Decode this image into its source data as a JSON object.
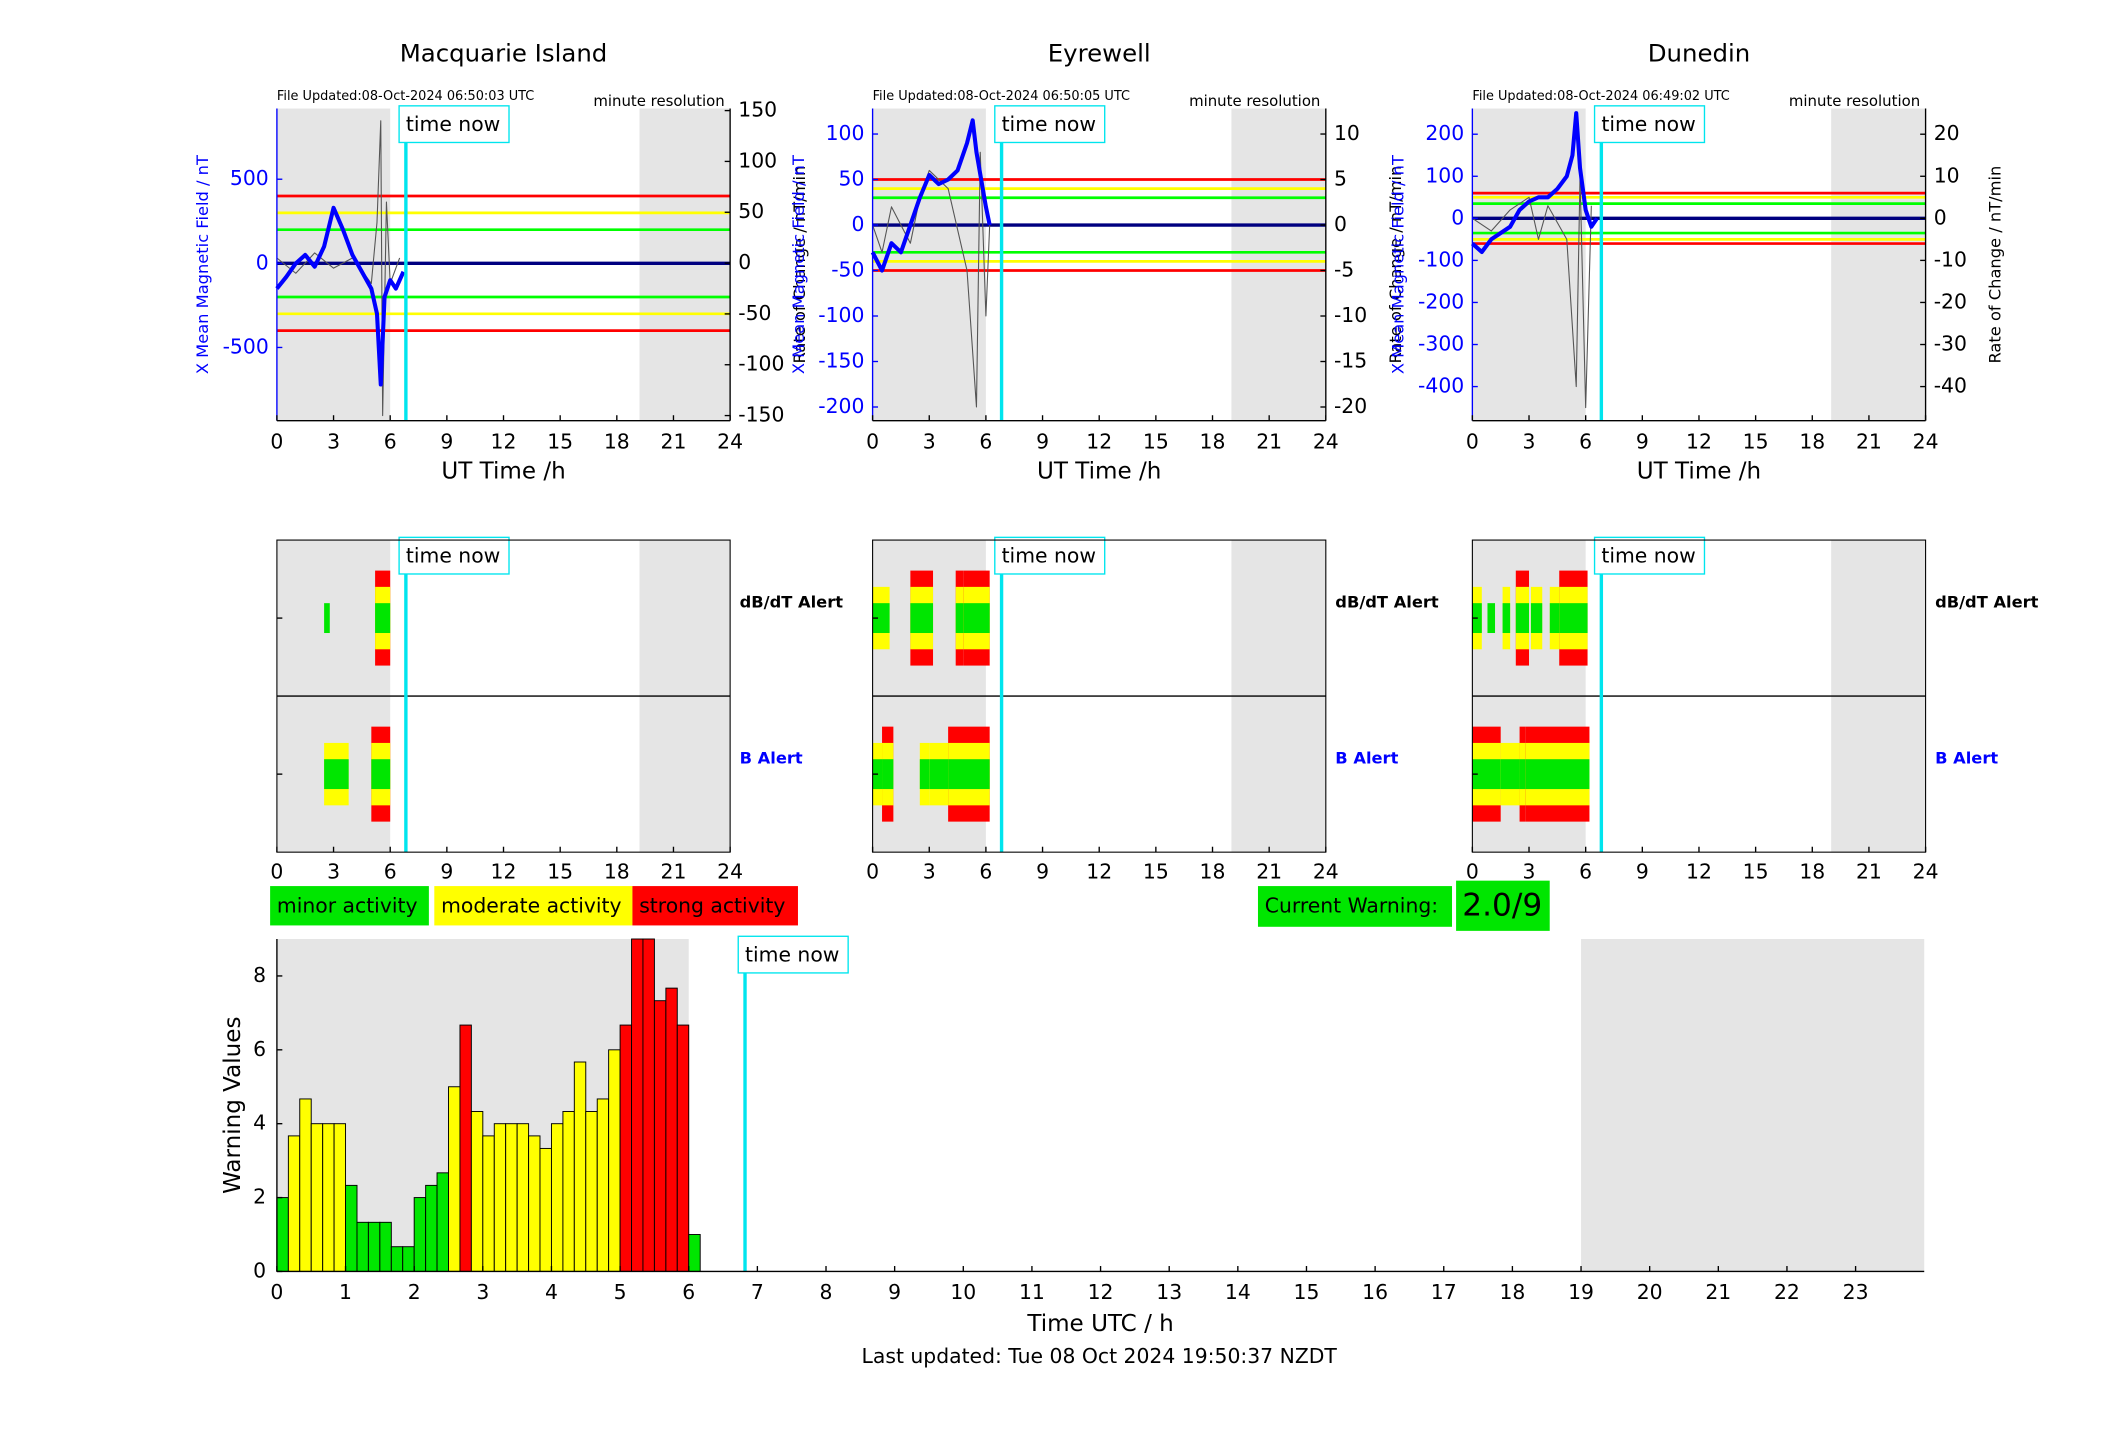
{
  "chart_data": [
    {
      "type": "line",
      "title": "Macquarie Island",
      "file_updated": "File Updated:08-Oct-2024 06:50:03 UTC",
      "resolution": "minute resolution",
      "annotation": "time now",
      "now": 6.83,
      "xlabel": "UT Time /h",
      "ylabel": "X Mean Magnetic Field / nT",
      "y2label": "Rate of Change / nT/min",
      "xlim": [
        0,
        24
      ],
      "xticks": [
        0,
        3,
        6,
        9,
        12,
        15,
        18,
        21,
        24
      ],
      "ylim": [
        -935,
        920
      ],
      "yticks": [
        -500,
        0,
        500
      ],
      "y2lim": [
        -155,
        152
      ],
      "y2ticks": [
        -150,
        -100,
        -50,
        0,
        50,
        100,
        150
      ],
      "shaded": [
        [
          0,
          6
        ],
        [
          19.2,
          24
        ]
      ],
      "levels": [
        {
          "value": 400,
          "color": "#ff0000"
        },
        {
          "value": 300,
          "color": "#ffff00"
        },
        {
          "value": 200,
          "color": "#00ff00"
        },
        {
          "value": -200,
          "color": "#00ff00"
        },
        {
          "value": -300,
          "color": "#ffff00"
        },
        {
          "value": -400,
          "color": "#ff0000"
        }
      ],
      "series": [
        {
          "color": "#555555",
          "axis": "y2",
          "x": [
            0,
            1,
            2,
            3,
            4,
            5,
            5.3,
            5.5,
            5.6,
            5.8,
            6,
            6.5
          ],
          "values": [
            5,
            -10,
            10,
            -5,
            5,
            -20,
            40,
            140,
            -150,
            60,
            -20,
            5
          ]
        },
        {
          "color": "#0000ff",
          "x": [
            0,
            0.5,
            1,
            1.5,
            2,
            2.5,
            3,
            3.5,
            4,
            4.5,
            5,
            5.3,
            5.5,
            5.7,
            6,
            6.3,
            6.7
          ],
          "values": [
            -150,
            -80,
            0,
            50,
            -20,
            100,
            330,
            200,
            50,
            -50,
            -150,
            -300,
            -720,
            -200,
            -100,
            -150,
            -50
          ]
        }
      ]
    },
    {
      "type": "line",
      "title": "Eyrewell",
      "file_updated": "File Updated:08-Oct-2024 06:50:05 UTC",
      "resolution": "minute resolution",
      "annotation": "time now",
      "now": 6.83,
      "xlabel": "UT Time /h",
      "ylabel": "X Mean Magnetic Field / nT",
      "y2label": "Rate of Change / nT/min",
      "xlim": [
        0,
        24
      ],
      "xticks": [
        0,
        3,
        6,
        9,
        12,
        15,
        18,
        21,
        24
      ],
      "ylim": [
        -215,
        128
      ],
      "yticks": [
        -200,
        -150,
        -100,
        -50,
        0,
        50,
        100
      ],
      "y2lim": [
        -21.5,
        12.8
      ],
      "y2ticks": [
        -20,
        -15,
        -10,
        -5,
        0,
        5,
        10
      ],
      "shaded": [
        [
          0,
          6
        ],
        [
          19,
          24
        ]
      ],
      "levels": [
        {
          "value": 50,
          "color": "#ff0000"
        },
        {
          "value": 40,
          "color": "#ffff00"
        },
        {
          "value": 30,
          "color": "#00ff00"
        },
        {
          "value": -30,
          "color": "#00ff00"
        },
        {
          "value": -40,
          "color": "#ffff00"
        },
        {
          "value": -50,
          "color": "#ff0000"
        }
      ],
      "series": [
        {
          "color": "#555555",
          "axis": "y2",
          "x": [
            0,
            0.5,
            1,
            2,
            2.5,
            3,
            4,
            5,
            5.5,
            5.7,
            6,
            6.2
          ],
          "values": [
            0,
            -3,
            2,
            -2,
            3,
            6,
            4,
            -5,
            -20,
            8,
            -10,
            0
          ]
        },
        {
          "color": "#0000ff",
          "x": [
            0,
            0.5,
            1,
            1.5,
            2,
            2.5,
            3,
            3.5,
            4,
            4.5,
            5,
            5.3,
            5.5,
            6,
            6.2
          ],
          "values": [
            -30,
            -50,
            -20,
            -30,
            0,
            30,
            55,
            45,
            50,
            60,
            90,
            115,
            80,
            20,
            0
          ]
        }
      ]
    },
    {
      "type": "line",
      "title": "Dunedin",
      "file_updated": "File Updated:08-Oct-2024 06:49:02 UTC",
      "resolution": "minute resolution",
      "annotation": "time now",
      "now": 6.83,
      "xlabel": "UT Time /h",
      "ylabel": "X Mean Magnetic Field / nT",
      "y2label": "Rate of Change / nT/min",
      "xlim": [
        0,
        24
      ],
      "xticks": [
        0,
        3,
        6,
        9,
        12,
        15,
        18,
        21,
        24
      ],
      "ylim": [
        -481,
        261
      ],
      "yticks": [
        -400,
        -300,
        -200,
        -100,
        0,
        100,
        200
      ],
      "y2lim": [
        -48.1,
        26.1
      ],
      "y2ticks": [
        -40,
        -30,
        -20,
        -10,
        0,
        10,
        20
      ],
      "shaded": [
        [
          0,
          6
        ],
        [
          19,
          24
        ]
      ],
      "levels": [
        {
          "value": 60,
          "color": "#ff0000"
        },
        {
          "value": 50,
          "color": "#ffff00"
        },
        {
          "value": 35,
          "color": "#00ff00"
        },
        {
          "value": -35,
          "color": "#00ff00"
        },
        {
          "value": -50,
          "color": "#ffff00"
        },
        {
          "value": -60,
          "color": "#ff0000"
        }
      ],
      "series": [
        {
          "color": "#555555",
          "axis": "y2",
          "x": [
            0,
            1,
            2,
            3,
            3.5,
            4,
            5,
            5.5,
            5.7,
            6,
            6.3
          ],
          "values": [
            0,
            -3,
            2,
            5,
            -5,
            3,
            -5,
            -40,
            10,
            -45,
            3
          ]
        },
        {
          "color": "#0000ff",
          "x": [
            0,
            0.5,
            1,
            2,
            2.5,
            3,
            3.5,
            4,
            4.5,
            5,
            5.3,
            5.5,
            5.7,
            6,
            6.3,
            6.6
          ],
          "values": [
            -60,
            -80,
            -50,
            -20,
            20,
            40,
            50,
            50,
            70,
            100,
            150,
            250,
            120,
            20,
            -20,
            0
          ]
        }
      ]
    },
    {
      "type": "alert",
      "annotation": "time now",
      "now": 6.83,
      "xlim": [
        0,
        24
      ],
      "xticks": [
        0,
        3,
        6,
        9,
        12,
        15,
        18,
        21,
        24
      ],
      "shaded": [
        [
          0,
          6
        ],
        [
          19.2,
          24
        ]
      ],
      "rows": [
        {
          "label": "dB/dT Alert",
          "color": "#000000",
          "segments": [
            [
              2.5,
              2.8,
              1
            ],
            [
              5.2,
              6,
              3
            ]
          ]
        },
        {
          "label": "B Alert",
          "color": "#0000ff",
          "segments": [
            [
              2.5,
              3.8,
              2
            ],
            [
              5,
              6,
              3
            ]
          ]
        }
      ]
    },
    {
      "type": "alert",
      "annotation": "time now",
      "now": 6.83,
      "xlim": [
        0,
        24
      ],
      "xticks": [
        0,
        3,
        6,
        9,
        12,
        15,
        18,
        21,
        24
      ],
      "shaded": [
        [
          0,
          6
        ],
        [
          19,
          24
        ]
      ],
      "rows": [
        {
          "label": "dB/dT Alert",
          "color": "#000000",
          "segments": [
            [
              0,
              0.9,
              2
            ],
            [
              2,
              3.2,
              3
            ],
            [
              4.4,
              4.8,
              3
            ],
            [
              4.8,
              6.2,
              3
            ]
          ]
        },
        {
          "label": "B Alert",
          "color": "#0000ff",
          "segments": [
            [
              0,
              0.5,
              2
            ],
            [
              0.5,
              1.1,
              3
            ],
            [
              2.5,
              3,
              2
            ],
            [
              3,
              4,
              2
            ],
            [
              4,
              6.2,
              3
            ]
          ]
        }
      ]
    },
    {
      "type": "alert",
      "annotation": "time now",
      "now": 6.83,
      "xlim": [
        0,
        24
      ],
      "xticks": [
        0,
        3,
        6,
        9,
        12,
        15,
        18,
        21,
        24
      ],
      "shaded": [
        [
          0,
          6
        ],
        [
          19,
          24
        ]
      ],
      "rows": [
        {
          "label": "dB/dT Alert",
          "color": "#000000",
          "segments": [
            [
              0,
              0.5,
              2
            ],
            [
              0.8,
              1.2,
              1
            ],
            [
              1.6,
              2,
              2
            ],
            [
              2.3,
              3,
              3
            ],
            [
              3.1,
              3.7,
              2
            ],
            [
              4.1,
              4.6,
              2
            ],
            [
              4.6,
              6.1,
              3
            ]
          ]
        },
        {
          "label": "B Alert",
          "color": "#0000ff",
          "segments": [
            [
              0,
              1.5,
              3
            ],
            [
              1.5,
              2.5,
              2
            ],
            [
              2.5,
              2.8,
              3
            ],
            [
              2.8,
              6.2,
              3
            ]
          ]
        }
      ]
    },
    {
      "type": "histogram",
      "annotation": "time now",
      "now": 6.82,
      "xlabel": "Time UTC / h",
      "ylabel": "Warning Values",
      "xlim": [
        0,
        24
      ],
      "xticks": [
        0,
        1,
        2,
        3,
        4,
        5,
        6,
        7,
        8,
        9,
        10,
        11,
        12,
        13,
        14,
        15,
        16,
        17,
        18,
        19,
        20,
        21,
        22,
        23
      ],
      "ylim": [
        0,
        9
      ],
      "yticks": [
        0,
        2,
        4,
        6,
        8
      ],
      "shaded": [
        [
          0,
          6
        ],
        [
          19,
          24
        ]
      ],
      "bins": [
        0,
        0.167,
        0.333,
        0.5,
        0.667,
        0.833,
        1,
        1.167,
        1.333,
        1.5,
        1.667,
        1.833,
        2,
        2.167,
        2.333,
        2.5,
        2.667,
        2.833,
        3,
        3.167,
        3.333,
        3.5,
        3.667,
        3.833,
        4,
        4.167,
        4.333,
        4.5,
        4.667,
        4.833,
        5,
        5.167,
        5.333,
        5.5,
        5.667,
        5.833,
        6,
        6.167
      ],
      "values": [
        2,
        3.67,
        4.67,
        4,
        4,
        4,
        2.33,
        1.33,
        1.33,
        1.33,
        0.67,
        0.67,
        2,
        2.33,
        2.67,
        5,
        6.67,
        4.33,
        3.67,
        4,
        4,
        4,
        3.67,
        3.33,
        4,
        4.33,
        5.67,
        4.33,
        4.67,
        6,
        6.67,
        9,
        9,
        7.33,
        7.67,
        6.67,
        1
      ],
      "colors": [
        "#00e600",
        "#ffff00",
        "#ffff00",
        "#ffff00",
        "#ffff00",
        "#ffff00",
        "#00e600",
        "#00e600",
        "#00e600",
        "#00e600",
        "#00e600",
        "#00e600",
        "#00e600",
        "#00e600",
        "#00e600",
        "#ffff00",
        "#ff0000",
        "#ffff00",
        "#ffff00",
        "#ffff00",
        "#ffff00",
        "#ffff00",
        "#ffff00",
        "#ffff00",
        "#ffff00",
        "#ffff00",
        "#ffff00",
        "#ffff00",
        "#ffff00",
        "#ffff00",
        "#ff0000",
        "#ff0000",
        "#ff0000",
        "#ff0000",
        "#ff0000",
        "#ff0000",
        "#00e600"
      ]
    }
  ],
  "legend": [
    {
      "label": "minor activity",
      "color": "#00e600"
    },
    {
      "label": "moderate activity",
      "color": "#ffff00"
    },
    {
      "label": "strong activity",
      "color": "#ff0000"
    }
  ],
  "current_warning": {
    "label": "Current Warning:",
    "value": "2.0/9",
    "color": "#00e600"
  },
  "footer": "Last updated: Tue 08 Oct 2024 19:50:37 NZDT"
}
